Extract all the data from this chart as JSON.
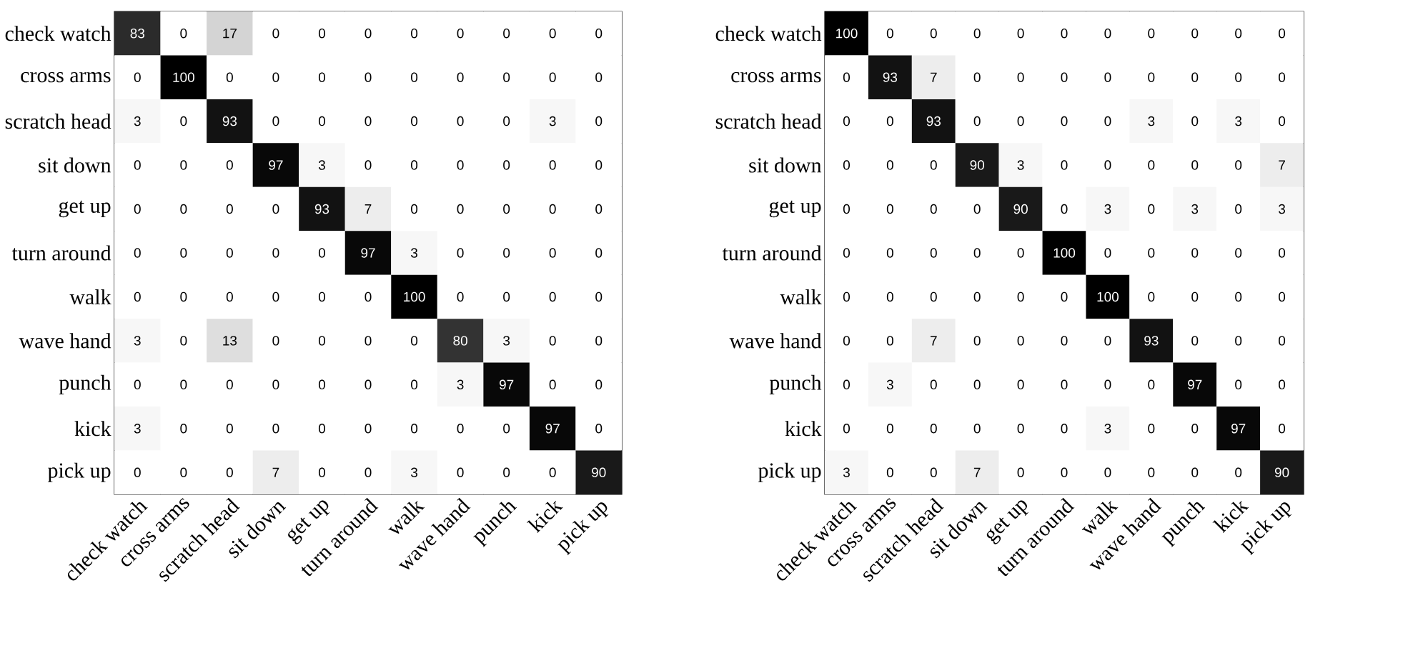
{
  "chart_data": [
    {
      "type": "heatmap",
      "data_labels": true,
      "categories": [
        "check watch",
        "cross arms",
        "scratch head",
        "sit down",
        "get up",
        "turn around",
        "walk",
        "wave hand",
        "punch",
        "kick",
        "pick up"
      ],
      "y_categories": [
        "check watch",
        "cross arms",
        "scratch head",
        "sit down",
        "get up",
        "turn around",
        "walk",
        "wave hand",
        "punch",
        "kick",
        "pick up"
      ],
      "cells": [
        [
          83,
          0,
          17,
          0,
          0,
          0,
          0,
          0,
          0,
          0,
          0
        ],
        [
          0,
          100,
          0,
          0,
          0,
          0,
          0,
          0,
          0,
          0,
          0
        ],
        [
          3,
          0,
          93,
          0,
          0,
          0,
          0,
          0,
          0,
          3,
          0
        ],
        [
          0,
          0,
          0,
          97,
          3,
          0,
          0,
          0,
          0,
          0,
          0
        ],
        [
          0,
          0,
          0,
          0,
          93,
          7,
          0,
          0,
          0,
          0,
          0
        ],
        [
          0,
          0,
          0,
          0,
          0,
          97,
          3,
          0,
          0,
          0,
          0
        ],
        [
          0,
          0,
          0,
          0,
          0,
          0,
          100,
          0,
          0,
          0,
          0
        ],
        [
          3,
          0,
          13,
          0,
          0,
          0,
          0,
          80,
          3,
          0,
          0
        ],
        [
          0,
          0,
          0,
          0,
          0,
          0,
          0,
          3,
          97,
          0,
          0
        ],
        [
          3,
          0,
          0,
          0,
          0,
          0,
          0,
          0,
          0,
          97,
          0
        ],
        [
          0,
          0,
          0,
          7,
          0,
          0,
          3,
          0,
          0,
          0,
          90
        ]
      ]
    },
    {
      "type": "heatmap",
      "data_labels": true,
      "categories": [
        "check watch",
        "cross arms",
        "scratch head",
        "sit down",
        "get up",
        "turn around",
        "walk",
        "wave hand",
        "punch",
        "kick",
        "pick up"
      ],
      "y_categories": [
        "check watch",
        "cross arms",
        "scratch head",
        "sit down",
        "get up",
        "turn around",
        "walk",
        "wave hand",
        "punch",
        "kick",
        "pick up"
      ],
      "cells": [
        [
          100,
          0,
          0,
          0,
          0,
          0,
          0,
          0,
          0,
          0,
          0
        ],
        [
          0,
          93,
          7,
          0,
          0,
          0,
          0,
          0,
          0,
          0,
          0
        ],
        [
          0,
          0,
          93,
          0,
          0,
          0,
          0,
          3,
          0,
          3,
          0
        ],
        [
          0,
          0,
          0,
          90,
          3,
          0,
          0,
          0,
          0,
          0,
          7
        ],
        [
          0,
          0,
          0,
          0,
          90,
          0,
          3,
          0,
          3,
          0,
          3
        ],
        [
          0,
          0,
          0,
          0,
          0,
          100,
          0,
          0,
          0,
          0,
          0
        ],
        [
          0,
          0,
          0,
          0,
          0,
          0,
          100,
          0,
          0,
          0,
          0
        ],
        [
          0,
          0,
          7,
          0,
          0,
          0,
          0,
          93,
          0,
          0,
          0
        ],
        [
          0,
          3,
          0,
          0,
          0,
          0,
          0,
          0,
          97,
          0,
          0
        ],
        [
          0,
          0,
          0,
          0,
          0,
          0,
          3,
          0,
          0,
          97,
          0
        ],
        [
          3,
          0,
          0,
          7,
          0,
          0,
          0,
          0,
          0,
          0,
          90
        ]
      ]
    }
  ]
}
